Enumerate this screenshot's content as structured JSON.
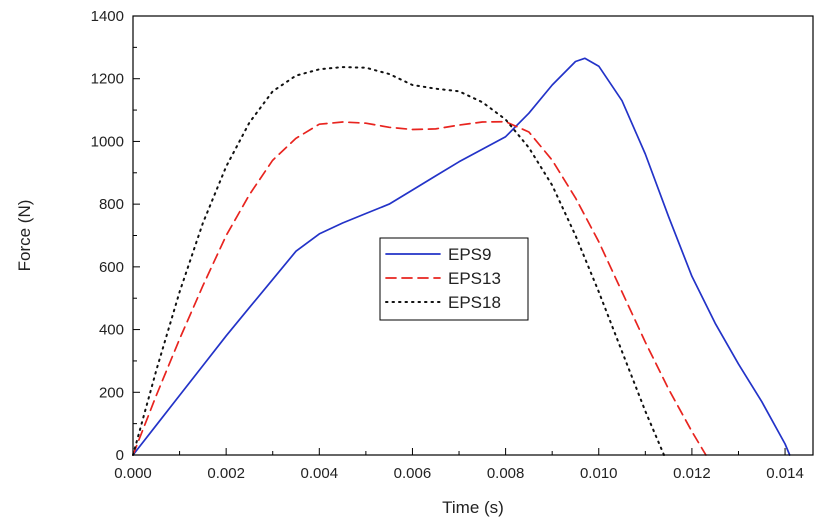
{
  "chart_data": {
    "type": "line",
    "title": "",
    "xlabel": "Time (s)",
    "ylabel": "Force (N)",
    "xlim": [
      0,
      0.0146
    ],
    "ylim": [
      0,
      1400
    ],
    "xticks": [
      0.0,
      0.002,
      0.004,
      0.006,
      0.008,
      0.01,
      0.012,
      0.014
    ],
    "xtick_labels": [
      "0.000",
      "0.002",
      "0.004",
      "0.006",
      "0.008",
      "0.010",
      "0.012",
      "0.014"
    ],
    "yticks": [
      0,
      200,
      400,
      600,
      800,
      1000,
      1200,
      1400
    ],
    "ytick_labels": [
      "0",
      "200",
      "400",
      "600",
      "800",
      "1000",
      "1200",
      "1400"
    ],
    "grid": false,
    "legend_position": "center",
    "series": [
      {
        "name": "EPS9",
        "color": "#2333c8",
        "dash": "solid",
        "x": [
          0,
          0.0005,
          0.001,
          0.0015,
          0.002,
          0.0025,
          0.003,
          0.0035,
          0.004,
          0.0045,
          0.005,
          0.0055,
          0.006,
          0.0065,
          0.007,
          0.0075,
          0.008,
          0.0085,
          0.009,
          0.0095,
          0.0097,
          0.01,
          0.0105,
          0.011,
          0.0115,
          0.012,
          0.0125,
          0.013,
          0.0135,
          0.014,
          0.0141
        ],
        "y": [
          0,
          95,
          190,
          285,
          380,
          470,
          560,
          650,
          705,
          740,
          770,
          800,
          845,
          890,
          935,
          975,
          1015,
          1090,
          1180,
          1255,
          1265,
          1240,
          1130,
          960,
          760,
          570,
          420,
          290,
          170,
          35,
          0
        ]
      },
      {
        "name": "EPS13",
        "color": "#e8241f",
        "dash": "dashed",
        "x": [
          0,
          0.0005,
          0.001,
          0.0015,
          0.002,
          0.0025,
          0.003,
          0.0035,
          0.004,
          0.0045,
          0.005,
          0.0055,
          0.006,
          0.0065,
          0.007,
          0.0075,
          0.008,
          0.0085,
          0.009,
          0.0095,
          0.01,
          0.0105,
          0.011,
          0.0115,
          0.012,
          0.0123
        ],
        "y": [
          0,
          190,
          370,
          540,
          700,
          830,
          940,
          1010,
          1055,
          1062,
          1058,
          1045,
          1038,
          1040,
          1052,
          1062,
          1063,
          1030,
          940,
          820,
          680,
          520,
          360,
          210,
          75,
          0
        ]
      },
      {
        "name": "EPS18",
        "color": "#111111",
        "dash": "dotted",
        "x": [
          0,
          0.0005,
          0.001,
          0.0015,
          0.002,
          0.0025,
          0.003,
          0.0035,
          0.004,
          0.0045,
          0.005,
          0.0055,
          0.006,
          0.0065,
          0.007,
          0.0075,
          0.008,
          0.0085,
          0.009,
          0.0095,
          0.01,
          0.0105,
          0.011,
          0.0114
        ],
        "y": [
          0,
          270,
          520,
          740,
          920,
          1060,
          1160,
          1210,
          1230,
          1237,
          1235,
          1215,
          1180,
          1168,
          1160,
          1125,
          1070,
          980,
          860,
          700,
          520,
          330,
          140,
          0
        ]
      }
    ]
  }
}
